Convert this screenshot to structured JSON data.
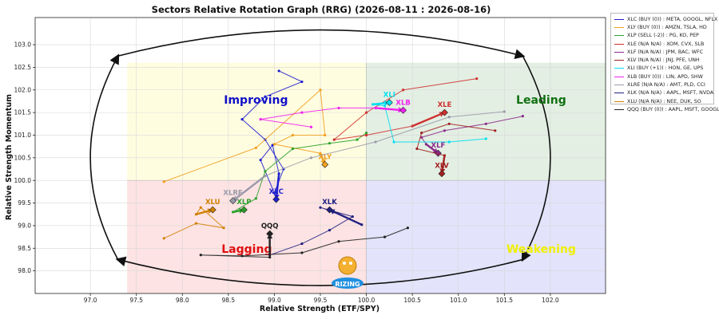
{
  "chart_data": {
    "type": "scatter",
    "title": "Sectors Relative Rotation Graph (RRG) (2026-08-11 : 2026-08-16)",
    "xlabel": "Relative Strength (ETF/SPY)",
    "ylabel": "Relative Strength Momentum",
    "xlim": [
      96.4,
      102.6
    ],
    "ylim": [
      97.5,
      103.6
    ],
    "x_ticks": [
      97.0,
      97.5,
      98.0,
      98.5,
      99.0,
      99.5,
      100.0,
      100.5,
      101.0,
      101.5,
      102.0
    ],
    "y_ticks": [
      98.0,
      98.5,
      99.0,
      99.5,
      100.0,
      100.5,
      101.0,
      101.5,
      102.0,
      102.5,
      103.0
    ],
    "grid": true,
    "legend_position": "right",
    "quadrants": [
      {
        "name": "Improving",
        "color": "#fffde0",
        "label_color": "#1010c8",
        "x": [
          97.4,
          100.0
        ],
        "y": [
          100.0,
          102.6
        ],
        "label_at": [
          98.8,
          101.7
        ]
      },
      {
        "name": "Leading",
        "color": "#e3efe3",
        "label_color": "#107010",
        "x": [
          100.0,
          102.6
        ],
        "y": [
          100.0,
          102.6
        ],
        "label_at": [
          101.9,
          101.7
        ]
      },
      {
        "name": "Lagging",
        "color": "#fde3e3",
        "label_color": "#e01010",
        "x": [
          97.4,
          100.0
        ],
        "y": [
          97.4,
          100.0
        ],
        "label_at": [
          98.7,
          98.4
        ]
      },
      {
        "name": "Weakening",
        "color": "#e3e3fb",
        "label_color": "#f0f000",
        "x": [
          100.0,
          102.6
        ],
        "y": [
          97.4,
          100.0
        ],
        "label_at": [
          101.9,
          98.4
        ]
      }
    ],
    "series": [
      {
        "name": "XLC",
        "legend": "XLC (BUY (0)) : META, GOOGL, NFLX",
        "color": "#1f1fd0",
        "points": [
          [
            99.05,
            102.42
          ],
          [
            99.3,
            102.18
          ],
          [
            98.9,
            101.85
          ],
          [
            98.65,
            101.35
          ],
          [
            98.9,
            100.9
          ],
          [
            99.1,
            100.25
          ],
          [
            99.0,
            99.72
          ],
          [
            98.85,
            100.45
          ],
          [
            98.98,
            100.78
          ],
          [
            99.05,
            100.15
          ],
          [
            99.02,
            99.58
          ]
        ]
      },
      {
        "name": "XLY",
        "legend": "XLY (BUY (0)) : AMZN, TSLA, HD",
        "color": "#f0a020",
        "points": [
          [
            97.8,
            99.97
          ],
          [
            98.8,
            100.72
          ],
          [
            99.5,
            102.0
          ],
          [
            99.55,
            101.0
          ],
          [
            99.2,
            101.0
          ],
          [
            99.0,
            100.8
          ],
          [
            99.5,
            100.6
          ],
          [
            99.55,
            100.35
          ]
        ]
      },
      {
        "name": "XLP",
        "legend": "XLP (SELL (-2)) : PG, KO, PEP",
        "color": "#2aa02a",
        "points": [
          [
            100.0,
            101.05
          ],
          [
            99.9,
            100.9
          ],
          [
            99.6,
            100.82
          ],
          [
            99.2,
            100.7
          ],
          [
            98.9,
            100.2
          ],
          [
            98.8,
            99.6
          ],
          [
            98.55,
            99.3
          ],
          [
            98.67,
            99.35
          ]
        ]
      },
      {
        "name": "XLE",
        "legend": "XLE (N/A N/A) : XOM, CVX, SLB",
        "color": "#d03030",
        "points": [
          [
            101.2,
            102.25
          ],
          [
            100.4,
            102.0
          ],
          [
            100.0,
            101.5
          ],
          [
            99.65,
            100.9
          ],
          [
            100.0,
            101.0
          ],
          [
            100.5,
            101.2
          ],
          [
            100.85,
            101.5
          ]
        ]
      },
      {
        "name": "XLF",
        "legend": "XLF (N/A N/A) : JPM, BAC, WFC",
        "color": "#8a2a8a",
        "points": [
          [
            101.7,
            101.42
          ],
          [
            101.3,
            101.25
          ],
          [
            100.85,
            101.1
          ],
          [
            100.6,
            100.95
          ],
          [
            100.65,
            100.8
          ],
          [
            100.78,
            100.6
          ]
        ]
      },
      {
        "name": "XLV",
        "legend": "XLV (N/A N/A) : JNJ, PFE, UNH",
        "color": "#a02020",
        "points": [
          [
            101.4,
            101.1
          ],
          [
            100.9,
            101.25
          ],
          [
            100.6,
            101.05
          ],
          [
            100.55,
            100.7
          ],
          [
            100.85,
            100.55
          ],
          [
            100.82,
            100.15
          ]
        ]
      },
      {
        "name": "XLI",
        "legend": "XLI (BUY (+1)) : HON, GE, UPS",
        "color": "#00e0f0",
        "points": [
          [
            101.3,
            100.92
          ],
          [
            100.9,
            100.85
          ],
          [
            100.3,
            100.85
          ],
          [
            100.2,
            101.65
          ],
          [
            100.07,
            101.68
          ],
          [
            100.25,
            101.72
          ]
        ]
      },
      {
        "name": "XLB",
        "legend": "XLB (BUY (0)) : LIN, APD, SHW",
        "color": "#f020f0",
        "points": [
          [
            99.4,
            101.18
          ],
          [
            98.85,
            101.35
          ],
          [
            99.3,
            101.5
          ],
          [
            99.7,
            101.6
          ],
          [
            100.1,
            101.6
          ],
          [
            100.4,
            101.55
          ]
        ]
      },
      {
        "name": "XLRE",
        "legend": "XLRE (N/A N/A) : AMT, PLD, CCI",
        "color": "#9a9aaa",
        "points": [
          [
            101.5,
            101.52
          ],
          [
            100.9,
            101.4
          ],
          [
            100.1,
            100.85
          ],
          [
            99.4,
            100.5
          ],
          [
            98.9,
            100.1
          ],
          [
            98.55,
            99.55
          ]
        ]
      },
      {
        "name": "XLK",
        "legend": "XLK (N/A N/A) : AAPL, MSFT, NVDA",
        "color": "#202080",
        "points": [
          [
            98.95,
            98.35
          ],
          [
            99.3,
            98.6
          ],
          [
            99.6,
            98.9
          ],
          [
            99.85,
            99.2
          ],
          [
            99.5,
            99.4
          ],
          [
            99.65,
            99.3
          ],
          [
            99.95,
            99.02
          ],
          [
            99.6,
            99.35
          ]
        ]
      },
      {
        "name": "XLU",
        "legend": "XLU (N/A N/A) : NEE, DUK, SO",
        "color": "#d08000",
        "points": [
          [
            97.8,
            98.72
          ],
          [
            98.15,
            99.05
          ],
          [
            98.45,
            98.95
          ],
          [
            98.2,
            99.4
          ],
          [
            98.15,
            99.25
          ],
          [
            98.33,
            99.35
          ]
        ]
      },
      {
        "name": "QQQ",
        "legend": "QQQ (BUY (0)) : AAPL, MSFT, GOOGL",
        "color": "#222222",
        "points": [
          [
            100.45,
            98.95
          ],
          [
            100.2,
            98.75
          ],
          [
            99.7,
            98.65
          ],
          [
            99.3,
            98.4
          ],
          [
            98.65,
            98.33
          ],
          [
            98.2,
            98.35
          ],
          [
            98.95,
            98.3
          ],
          [
            98.95,
            98.82
          ]
        ]
      }
    ]
  },
  "watermark": {
    "label": "RIZING"
  }
}
